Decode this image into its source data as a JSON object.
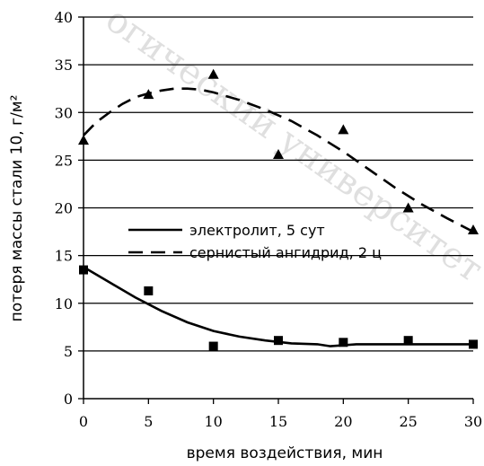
{
  "chart_data": {
    "type": "scatter",
    "xlabel": "время воздействия, мин",
    "ylabel": "потеря массы стали 10, г/м²",
    "xlim": [
      0,
      30
    ],
    "ylim": [
      0,
      40
    ],
    "x_ticks": [
      0,
      5,
      10,
      15,
      20,
      25,
      30
    ],
    "y_ticks": [
      0,
      5,
      10,
      15,
      20,
      25,
      30,
      35,
      40
    ],
    "grid": "horizontal",
    "legend_position": "center-left",
    "series": [
      {
        "name": "электролит, 5 сут",
        "line_style": "solid",
        "marker": "square",
        "color": "#000000",
        "points": [
          {
            "x": 0,
            "y": 13.5
          },
          {
            "x": 5,
            "y": 11.3
          },
          {
            "x": 10,
            "y": 5.5
          },
          {
            "x": 15,
            "y": 6.1
          },
          {
            "x": 20,
            "y": 5.9
          },
          {
            "x": 25,
            "y": 6.1
          },
          {
            "x": 30,
            "y": 5.7
          }
        ],
        "trend": [
          {
            "x": 0,
            "y": 13.8
          },
          {
            "x": 2,
            "y": 12.2
          },
          {
            "x": 4,
            "y": 10.6
          },
          {
            "x": 6,
            "y": 9.2
          },
          {
            "x": 8,
            "y": 8.0
          },
          {
            "x": 10,
            "y": 7.1
          },
          {
            "x": 12,
            "y": 6.5
          },
          {
            "x": 14,
            "y": 6.1
          },
          {
            "x": 16,
            "y": 5.8
          },
          {
            "x": 18,
            "y": 5.7
          },
          {
            "x": 19,
            "y": 5.5
          },
          {
            "x": 20,
            "y": 5.6
          },
          {
            "x": 21,
            "y": 5.7
          },
          {
            "x": 24,
            "y": 5.7
          },
          {
            "x": 27,
            "y": 5.7
          },
          {
            "x": 30,
            "y": 5.7
          }
        ]
      },
      {
        "name": "сернистый ангидрид, 2 ц",
        "line_style": "dashed",
        "marker": "triangle",
        "color": "#000000",
        "points": [
          {
            "x": 0,
            "y": 27.1
          },
          {
            "x": 5,
            "y": 31.9
          },
          {
            "x": 10,
            "y": 34.0
          },
          {
            "x": 15,
            "y": 25.6
          },
          {
            "x": 20,
            "y": 28.2
          },
          {
            "x": 25,
            "y": 20.0
          },
          {
            "x": 30,
            "y": 17.7
          }
        ],
        "trend": [
          {
            "x": 0,
            "y": 27.6
          },
          {
            "x": 1,
            "y": 29.0
          },
          {
            "x": 2,
            "y": 30.0
          },
          {
            "x": 3,
            "y": 30.9
          },
          {
            "x": 4,
            "y": 31.6
          },
          {
            "x": 5,
            "y": 32.0
          },
          {
            "x": 6,
            "y": 32.3
          },
          {
            "x": 7,
            "y": 32.5
          },
          {
            "x": 8,
            "y": 32.5
          },
          {
            "x": 9,
            "y": 32.4
          },
          {
            "x": 10,
            "y": 32.1
          },
          {
            "x": 12,
            "y": 31.3
          },
          {
            "x": 14,
            "y": 30.3
          },
          {
            "x": 16,
            "y": 29.1
          },
          {
            "x": 18,
            "y": 27.6
          },
          {
            "x": 20,
            "y": 25.9
          },
          {
            "x": 22,
            "y": 24.0
          },
          {
            "x": 24,
            "y": 22.1
          },
          {
            "x": 26,
            "y": 20.4
          },
          {
            "x": 28,
            "y": 18.9
          },
          {
            "x": 30,
            "y": 17.5
          }
        ]
      }
    ]
  },
  "watermark": "огический университет"
}
